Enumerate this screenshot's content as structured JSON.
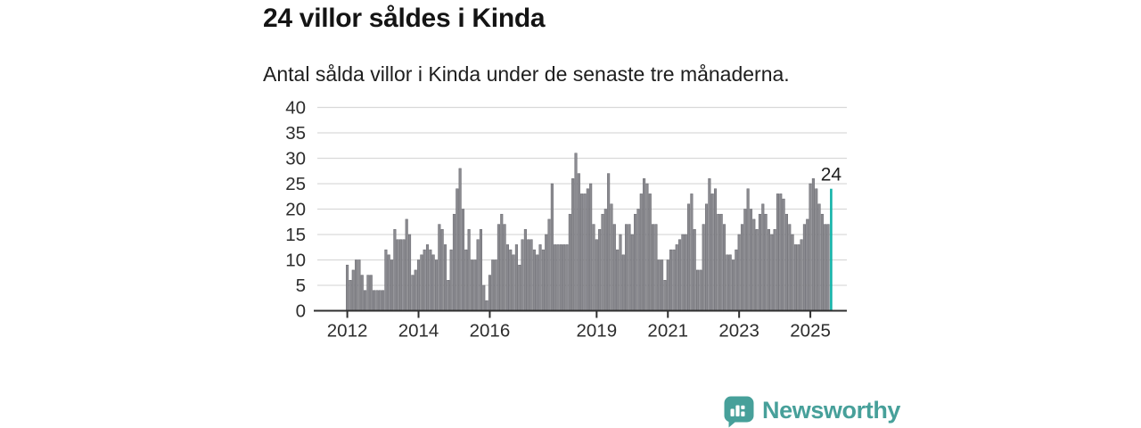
{
  "header": {
    "title": "24 villor såldes i Kinda",
    "subtitle": "Antal sålda villor i Kinda under de senaste tre månaderna."
  },
  "chart_data": {
    "type": "bar",
    "title": "24 villor såldes i Kinda",
    "subtitle": "Antal sålda villor i Kinda under de senaste tre månaderna.",
    "unit": "sålda villor per 3 månader",
    "start_month": "2012-01",
    "values": [
      9,
      6,
      8,
      10,
      10,
      7,
      4,
      7,
      7,
      4,
      4,
      4,
      4,
      12,
      11,
      10,
      16,
      14,
      14,
      14,
      18,
      15,
      7,
      8,
      10,
      11,
      12,
      13,
      12,
      11,
      10,
      17,
      16,
      13,
      6,
      12,
      19,
      24,
      28,
      20,
      12,
      16,
      10,
      10,
      14,
      16,
      5,
      2,
      7,
      10,
      10,
      17,
      19,
      17,
      13,
      12,
      11,
      13,
      9,
      14,
      16,
      14,
      14,
      12,
      11,
      13,
      12,
      15,
      18,
      25,
      13,
      13,
      13,
      13,
      13,
      19,
      26,
      31,
      27,
      23,
      23,
      24,
      25,
      17,
      14,
      16,
      19,
      20,
      27,
      21,
      17,
      12,
      15,
      11,
      17,
      17,
      15,
      19,
      20,
      23,
      26,
      25,
      23,
      17,
      17,
      10,
      10,
      6,
      10,
      12,
      12,
      13,
      14,
      15,
      15,
      21,
      23,
      16,
      8,
      8,
      17,
      21,
      26,
      23,
      24,
      19,
      19,
      17,
      11,
      11,
      10,
      12,
      15,
      17,
      20,
      24,
      20,
      18,
      16,
      19,
      21,
      19,
      16,
      15,
      16,
      23,
      23,
      22,
      19,
      17,
      15,
      13,
      13,
      14,
      17,
      18,
      25,
      26,
      24,
      21,
      19,
      17,
      17,
      24
    ],
    "highlight_last": true,
    "annotation": {
      "label": "24"
    },
    "y_ticks": [
      0,
      5,
      10,
      15,
      20,
      25,
      30,
      35,
      40
    ],
    "ylim": [
      0,
      40
    ],
    "x_tick_years": [
      2012,
      2014,
      2016,
      2019,
      2021,
      2023,
      2025
    ],
    "grid": true,
    "legend": "none",
    "colors": {
      "bar": "#8b8b90",
      "bar_edge": "#66666d",
      "highlight": "#13b3a8",
      "gridline": "#d9d9d9",
      "axis": "#2f2f2f",
      "tick_label": "#2d2d2d",
      "annotation": "#1f1f1f"
    }
  },
  "branding": {
    "logo_text": "Newsworthy",
    "color": "#47a09a"
  }
}
